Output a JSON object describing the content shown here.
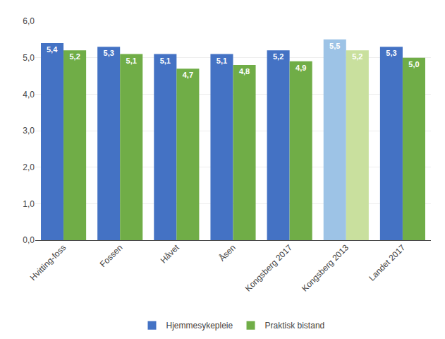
{
  "chart_data": {
    "type": "bar",
    "categories": [
      "Hvitting-foss",
      "Fossen",
      "Håvet",
      "Åsen",
      "Kongsberg 2017",
      "Kongsberg 2013",
      "Landet 2017"
    ],
    "series": [
      {
        "name": "Hjemmesykepleie",
        "colors": [
          "#4472C4",
          "#4472C4",
          "#4472C4",
          "#4472C4",
          "#4472C4",
          "#9DC3E6",
          "#4472C4"
        ],
        "values": [
          5.4,
          5.3,
          5.1,
          5.1,
          5.2,
          5.5,
          5.3
        ],
        "value_labels": [
          "5,4",
          "5,3",
          "5,1",
          "5,1",
          "5,2",
          "5,5",
          "5,3"
        ]
      },
      {
        "name": "Praktisk bistand",
        "colors": [
          "#70AD47",
          "#70AD47",
          "#70AD47",
          "#70AD47",
          "#70AD47",
          "#C9E09E",
          "#70AD47"
        ],
        "values": [
          5.2,
          5.1,
          4.7,
          4.8,
          4.9,
          5.2,
          5.0
        ],
        "value_labels": [
          "5,2",
          "5,1",
          "4,7",
          "4,8",
          "4,9",
          "5,2",
          "5,0"
        ]
      }
    ],
    "ylim": [
      0,
      6.0
    ],
    "yticks": [
      {
        "value": 0.0,
        "label": "0,0"
      },
      {
        "value": 1.0,
        "label": "1,0"
      },
      {
        "value": 2.0,
        "label": "2,0"
      },
      {
        "value": 3.0,
        "label": "3,0"
      },
      {
        "value": 4.0,
        "label": "4,0"
      },
      {
        "value": 5.0,
        "label": "5,0"
      },
      {
        "value": 6.0,
        "label": "6,0"
      }
    ],
    "grid": true,
    "legend": "bottom",
    "data_labels": true
  }
}
